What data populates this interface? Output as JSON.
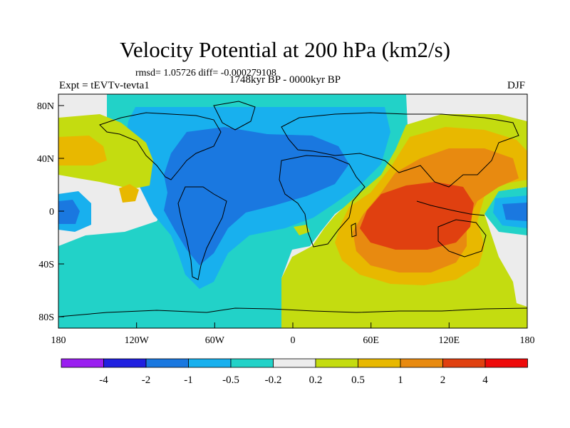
{
  "title": "Velocity Potential at 200 hPa (km2/s)",
  "stats_line": "rmsd= 1.05726 diff= -0.000279108",
  "experiment": "Expt = tEVTv-tevta1",
  "period": "1748kyr BP - 0000kyr BP",
  "season": "DJF",
  "axes": {
    "x_ticks": [
      "180",
      "120W",
      "60W",
      "0",
      "60E",
      "120E",
      "180"
    ],
    "y_ticks": [
      "80N",
      "40N",
      "0",
      "40S",
      "80S"
    ]
  },
  "colorbar": {
    "labels": [
      "-4",
      "-2",
      "-1",
      "-0.5",
      "-0.2",
      "0.2",
      "0.5",
      "1",
      "2",
      "4"
    ],
    "colors": [
      "#9a1ff0",
      "#2020e0",
      "#1a78e0",
      "#18b0ee",
      "#22d2c8",
      "#ececec",
      "#c4dc10",
      "#e8b800",
      "#e88a10",
      "#e04010",
      "#ee0a0a"
    ]
  },
  "field_colors": {
    "ocean_bg": "#ececec",
    "neg_0_2": "#22d2c8",
    "neg_0_5": "#18b0ee",
    "neg_1": "#1a78e0",
    "pos_0_2": "#c4dc10",
    "pos_0_5": "#e8b800",
    "pos_1": "#e88a10",
    "pos_2": "#e04010"
  }
}
